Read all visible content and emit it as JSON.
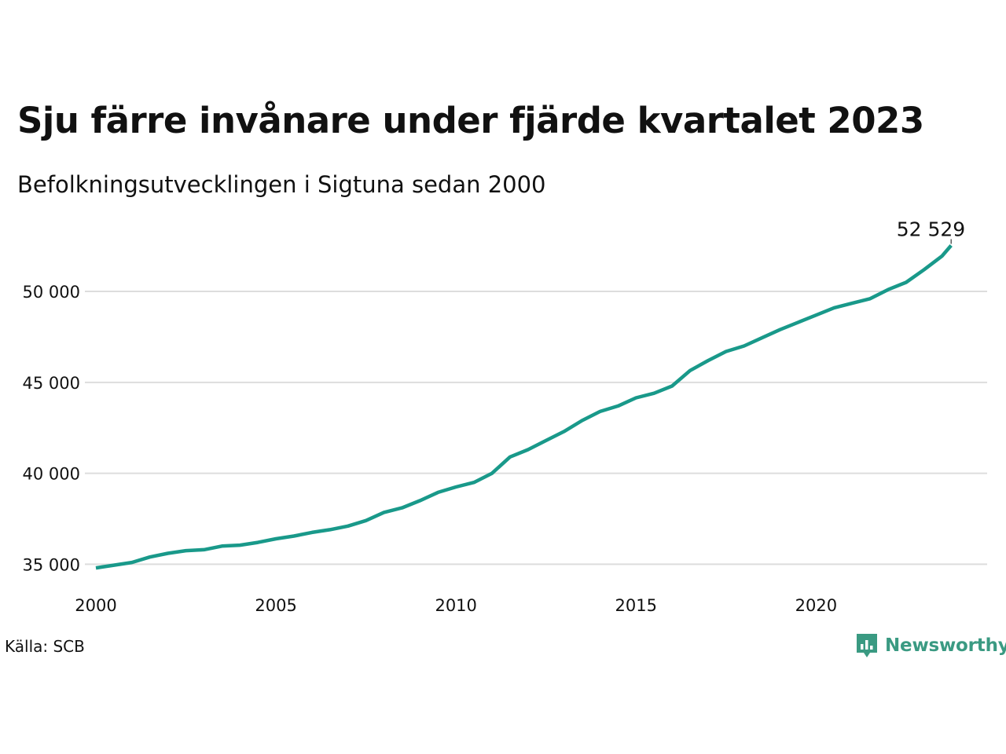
{
  "header": {
    "title": "Sju färre invånare under fjärde kvartalet 2023",
    "subtitle": "Befolkningsutvecklingen i Sigtuna sedan 2000"
  },
  "footer": {
    "source": "Källa: SCB",
    "brand": "Newsworthy",
    "brand_icon": "bar-chart-speech-bubble-icon"
  },
  "colors": {
    "line": "#19998a",
    "grid": "#dddddd",
    "brand": "#3a9a82",
    "text": "#111111"
  },
  "chart_data": {
    "type": "line",
    "title": "Sju färre invånare under fjärde kvartalet 2023",
    "subtitle": "Befolkningsutvecklingen i Sigtuna sedan 2000",
    "xlabel": "",
    "ylabel": "",
    "xlim": [
      2000,
      2024.75
    ],
    "ylim": [
      34500,
      53500
    ],
    "x_ticks": [
      2000,
      2005,
      2010,
      2015,
      2020
    ],
    "x_tick_labels": [
      "2000",
      "2005",
      "2010",
      "2015",
      "2020"
    ],
    "y_ticks": [
      35000,
      40000,
      45000,
      50000
    ],
    "y_tick_labels": [
      "35 000",
      "40 000",
      "45 000",
      "50 000"
    ],
    "grid": "horizontal",
    "legend": "none",
    "end_label": "52 529",
    "x": [
      2000.0,
      2000.5,
      2001.0,
      2001.5,
      2002.0,
      2002.5,
      2003.0,
      2003.5,
      2004.0,
      2004.5,
      2005.0,
      2005.5,
      2006.0,
      2006.5,
      2007.0,
      2007.5,
      2008.0,
      2008.5,
      2009.0,
      2009.5,
      2010.0,
      2010.5,
      2011.0,
      2011.5,
      2012.0,
      2012.5,
      2013.0,
      2013.5,
      2014.0,
      2014.5,
      2015.0,
      2015.5,
      2016.0,
      2016.5,
      2017.0,
      2017.5,
      2018.0,
      2018.5,
      2019.0,
      2019.5,
      2020.0,
      2020.5,
      2021.0,
      2021.5,
      2022.0,
      2022.5,
      2023.0,
      2023.5,
      2023.75
    ],
    "values": [
      34800,
      34950,
      35100,
      35400,
      35600,
      35750,
      35800,
      36000,
      36050,
      36200,
      36400,
      36550,
      36750,
      36900,
      37100,
      37400,
      37850,
      38100,
      38500,
      38950,
      39250,
      39500,
      40000,
      40900,
      41300,
      41800,
      42300,
      42900,
      43400,
      43700,
      44150,
      44400,
      44800,
      45650,
      46200,
      46700,
      47000,
      47450,
      47900,
      48300,
      48700,
      49100,
      49350,
      49600,
      50100,
      50500,
      51200,
      51950,
      52529
    ],
    "series": [
      {
        "name": "",
        "color": "#19998a"
      }
    ]
  }
}
